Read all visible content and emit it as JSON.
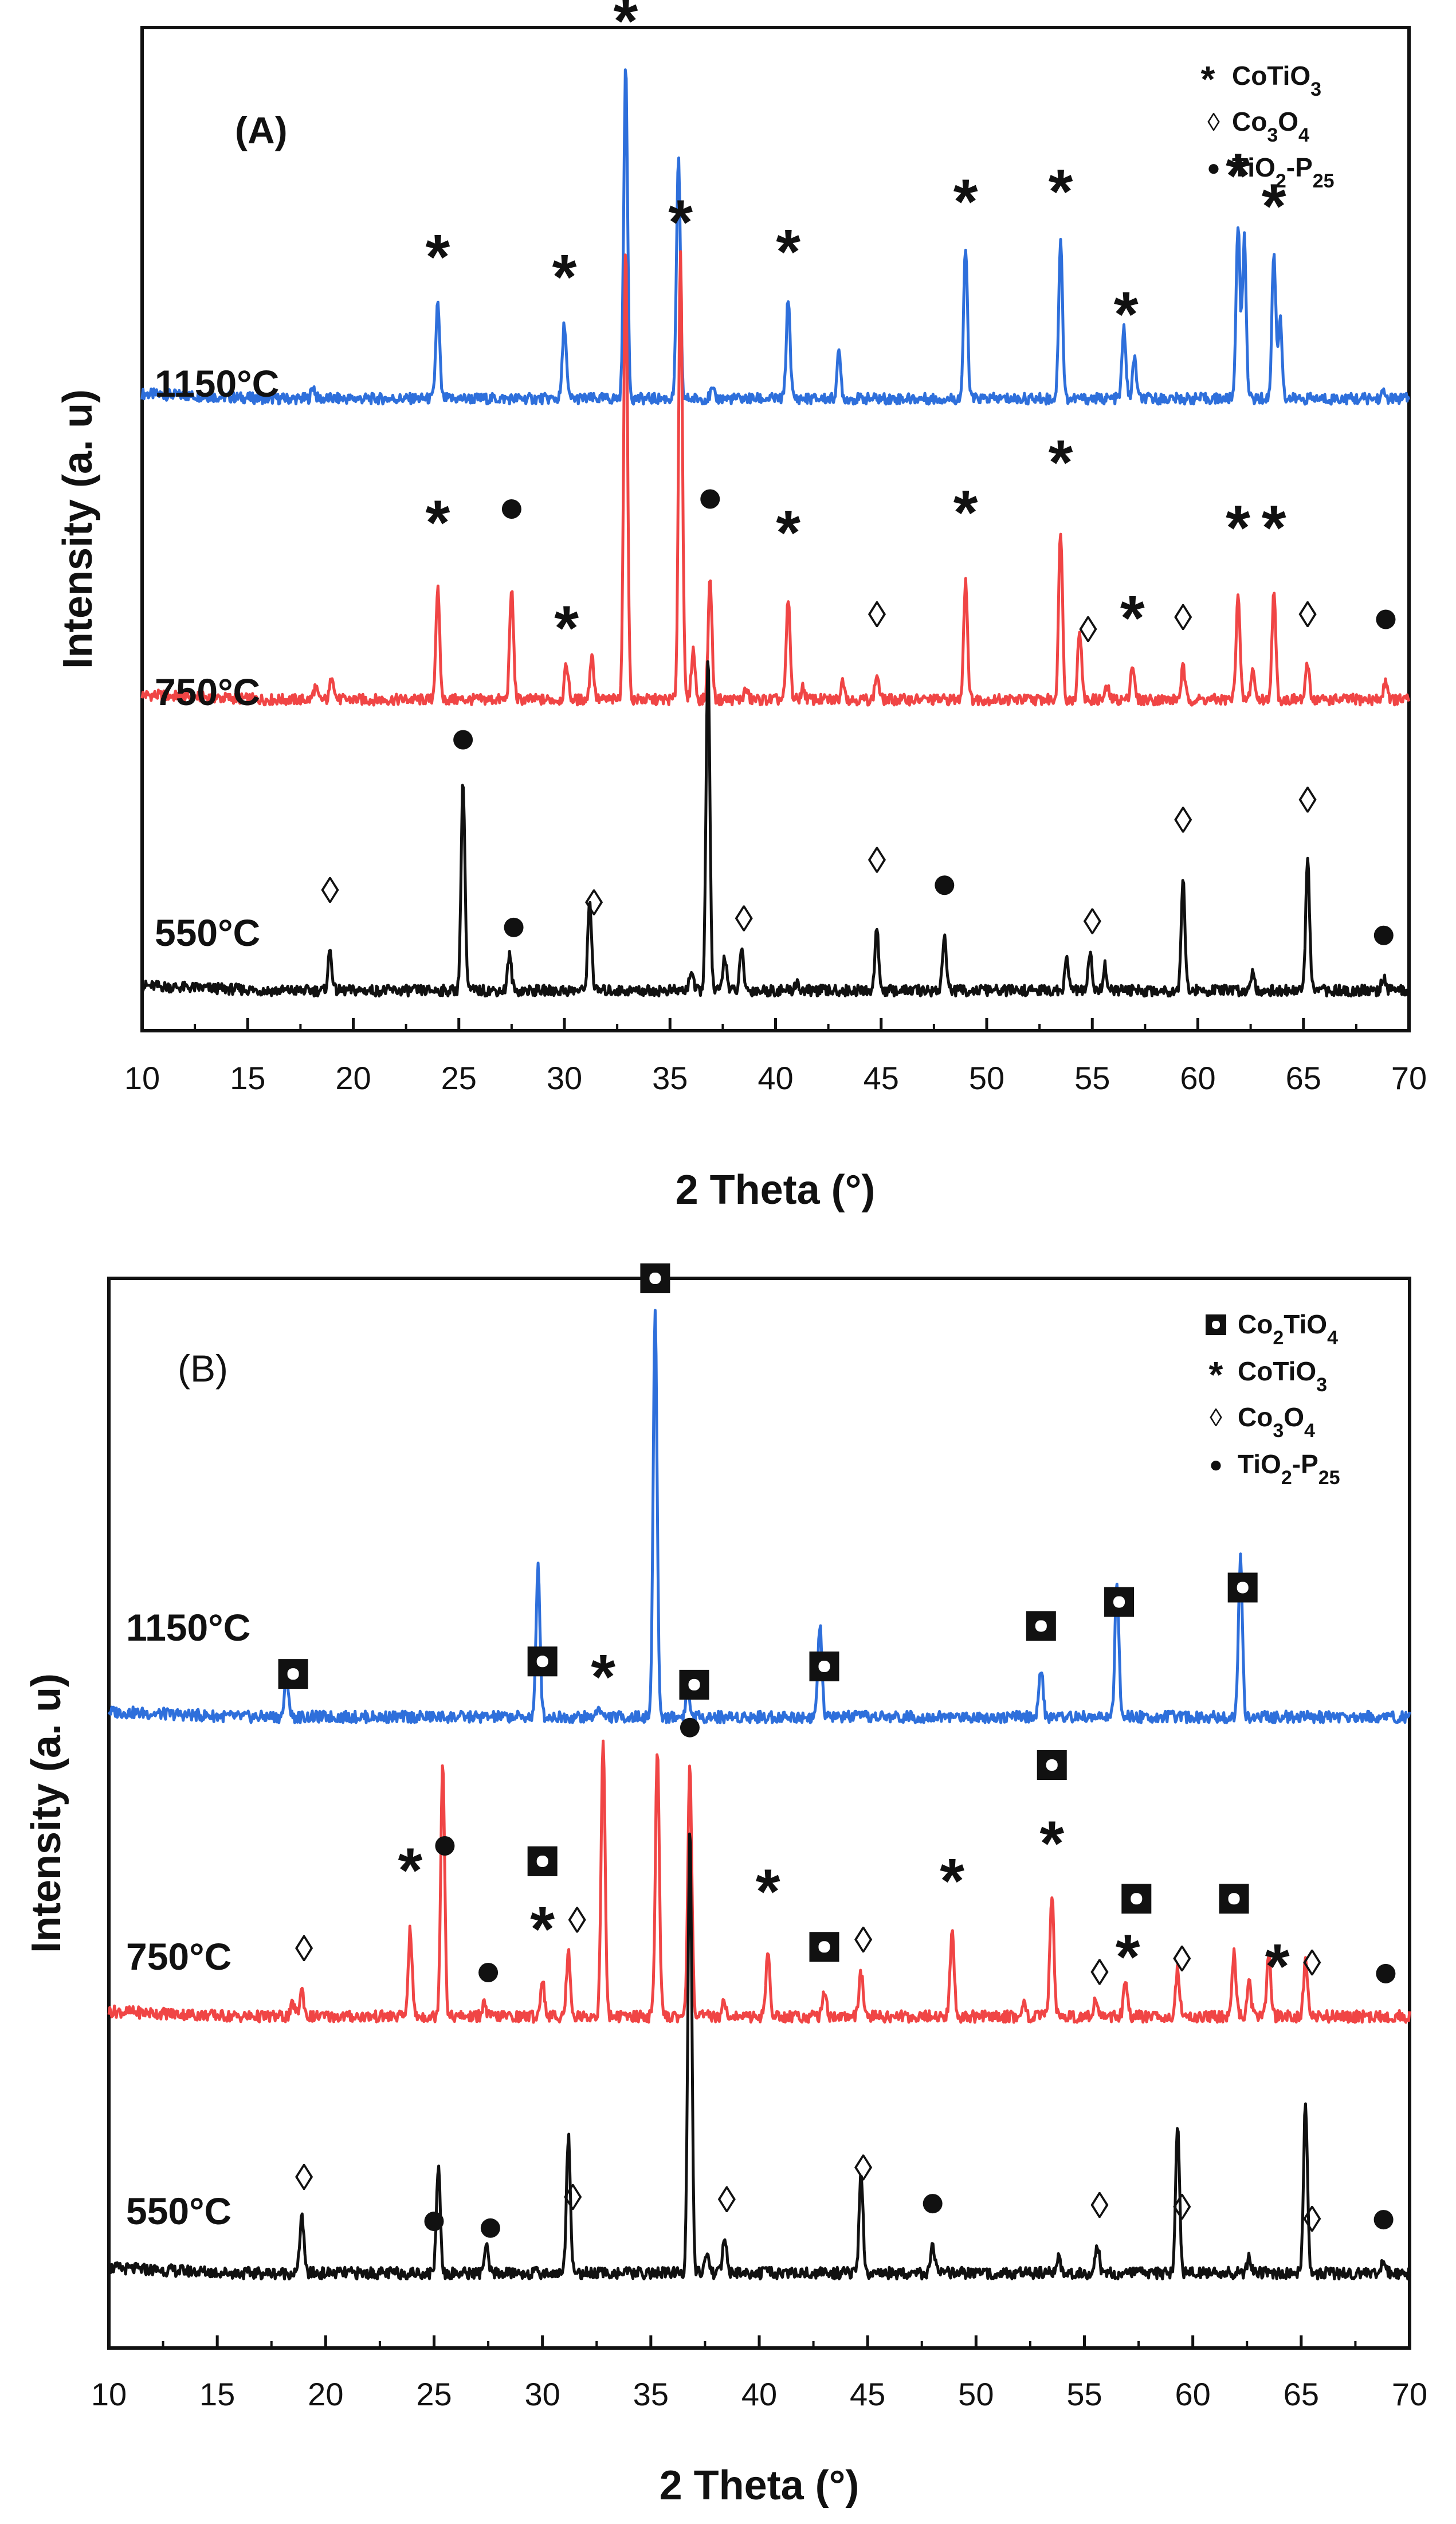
{
  "chart_data": [
    {
      "type": "line",
      "panel_label": "(A)",
      "xlabel": "2 Theta (°)",
      "ylabel": "Intensity (a. u)",
      "xlim": [
        10,
        70
      ],
      "ylim": [
        0,
        100
      ],
      "x_ticks": [
        "10",
        "15",
        "20",
        "25",
        "30",
        "35",
        "40",
        "45",
        "50",
        "55",
        "60",
        "65",
        "70"
      ],
      "legend": {
        "position": "top-right",
        "entries": [
          {
            "marker": "*",
            "text": "CoTiO3"
          },
          {
            "marker": "◊",
            "text": "Co3O4"
          },
          {
            "marker": "●",
            "text": "TiO2-P25"
          }
        ]
      },
      "series": [
        {
          "name": "1150°C",
          "color": "#2e6fdb",
          "baseline": 63,
          "peaks": [
            {
              "x": 18.1,
              "h": 1.2
            },
            {
              "x": 24.0,
              "h": 9.5
            },
            {
              "x": 30.0,
              "h": 7.5
            },
            {
              "x": 32.9,
              "h": 33
            },
            {
              "x": 35.4,
              "h": 24
            },
            {
              "x": 37.0,
              "h": 0.8
            },
            {
              "x": 40.6,
              "h": 10
            },
            {
              "x": 43.0,
              "h": 4.5
            },
            {
              "x": 49.0,
              "h": 15
            },
            {
              "x": 53.5,
              "h": 16
            },
            {
              "x": 56.5,
              "h": 7
            },
            {
              "x": 57.0,
              "h": 4
            },
            {
              "x": 61.9,
              "h": 17.5
            },
            {
              "x": 62.2,
              "h": 16
            },
            {
              "x": 63.6,
              "h": 14.5
            },
            {
              "x": 63.9,
              "h": 8
            },
            {
              "x": 68.8,
              "h": 0.6
            }
          ],
          "markers": [
            {
              "x": 24.0,
              "sym": "*"
            },
            {
              "x": 30.0,
              "sym": "*"
            },
            {
              "x": 32.9,
              "sym": "*"
            },
            {
              "x": 35.5,
              "sym": "*"
            },
            {
              "x": 40.6,
              "sym": "*"
            },
            {
              "x": 49.0,
              "sym": "*"
            },
            {
              "x": 53.5,
              "sym": "*"
            },
            {
              "x": 56.6,
              "sym": "*"
            },
            {
              "x": 61.9,
              "sym": "*"
            },
            {
              "x": 63.6,
              "sym": "*"
            }
          ]
        },
        {
          "name": "750°C",
          "color": "#f04545",
          "baseline": 33,
          "peaks": [
            {
              "x": 18.2,
              "h": 1.2
            },
            {
              "x": 19.0,
              "h": 2.5
            },
            {
              "x": 24.0,
              "h": 11
            },
            {
              "x": 27.5,
              "h": 11
            },
            {
              "x": 30.1,
              "h": 3.5
            },
            {
              "x": 31.3,
              "h": 4.5
            },
            {
              "x": 32.9,
              "h": 45
            },
            {
              "x": 35.5,
              "h": 45
            },
            {
              "x": 36.1,
              "h": 5
            },
            {
              "x": 36.9,
              "h": 12
            },
            {
              "x": 38.6,
              "h": 1
            },
            {
              "x": 40.6,
              "h": 10
            },
            {
              "x": 41.3,
              "h": 1.2
            },
            {
              "x": 43.2,
              "h": 2
            },
            {
              "x": 44.8,
              "h": 2.5
            },
            {
              "x": 49.0,
              "h": 12
            },
            {
              "x": 53.5,
              "h": 17
            },
            {
              "x": 54.4,
              "h": 7
            },
            {
              "x": 55.7,
              "h": 1.2
            },
            {
              "x": 56.9,
              "h": 3.5
            },
            {
              "x": 59.3,
              "h": 3.2
            },
            {
              "x": 61.9,
              "h": 10.5
            },
            {
              "x": 62.6,
              "h": 3
            },
            {
              "x": 63.6,
              "h": 10.5
            },
            {
              "x": 65.2,
              "h": 3.5
            },
            {
              "x": 68.9,
              "h": 2
            }
          ],
          "markers": [
            {
              "x": 24.0,
              "sym": "*",
              "dy": 7
            },
            {
              "x": 27.5,
              "sym": "●",
              "dy": 8
            },
            {
              "x": 30.1,
              "sym": "*",
              "dy": 4
            },
            {
              "x": 36.9,
              "sym": "●",
              "dy": 8
            },
            {
              "x": 40.6,
              "sym": "*",
              "dy": 7
            },
            {
              "x": 44.8,
              "sym": "◊",
              "dy": 6
            },
            {
              "x": 49.0,
              "sym": "*",
              "dy": 7
            },
            {
              "x": 53.5,
              "sym": "*",
              "dy": 7
            },
            {
              "x": 54.8,
              "sym": "◊",
              "dy": 7
            },
            {
              "x": 56.9,
              "sym": "*",
              "dy": 5
            },
            {
              "x": 59.3,
              "sym": "◊",
              "dy": 5
            },
            {
              "x": 61.9,
              "sym": "*",
              "dy": 7
            },
            {
              "x": 63.6,
              "sym": "*",
              "dy": 7
            },
            {
              "x": 65.2,
              "sym": "◊",
              "dy": 5
            },
            {
              "x": 68.9,
              "sym": "●",
              "dy": 6
            }
          ]
        },
        {
          "name": "550°C",
          "color": "#111111",
          "baseline": 4,
          "peaks": [
            {
              "x": 18.9,
              "h": 4
            },
            {
              "x": 25.2,
              "h": 21
            },
            {
              "x": 27.4,
              "h": 3.5
            },
            {
              "x": 31.2,
              "h": 9
            },
            {
              "x": 36.0,
              "h": 2
            },
            {
              "x": 36.8,
              "h": 33
            },
            {
              "x": 37.6,
              "h": 3.5
            },
            {
              "x": 38.4,
              "h": 4
            },
            {
              "x": 41.0,
              "h": 0.8
            },
            {
              "x": 44.8,
              "h": 6
            },
            {
              "x": 48.0,
              "h": 5.5
            },
            {
              "x": 53.8,
              "h": 3
            },
            {
              "x": 54.9,
              "h": 3.5
            },
            {
              "x": 55.6,
              "h": 2.5
            },
            {
              "x": 59.3,
              "h": 11
            },
            {
              "x": 62.6,
              "h": 2
            },
            {
              "x": 65.2,
              "h": 13
            },
            {
              "x": 68.8,
              "h": 1.5
            }
          ],
          "markers": [
            {
              "x": 18.9,
              "sym": "◊",
              "dy": 6
            },
            {
              "x": 25.2,
              "sym": "●",
              "dy": 4
            },
            {
              "x": 27.6,
              "sym": "●",
              "dy": 6
            },
            {
              "x": 31.4,
              "sym": "◊",
              "dy": 8
            },
            {
              "x": 38.5,
              "sym": "◊",
              "dy": 5
            },
            {
              "x": 44.8,
              "sym": "◊",
              "dy": 7
            },
            {
              "x": 48.0,
              "sym": "●",
              "dy": 5
            },
            {
              "x": 55.0,
              "sym": "◊",
              "dy": 5
            },
            {
              "x": 59.3,
              "sym": "◊",
              "dy": 6
            },
            {
              "x": 65.2,
              "sym": "◊",
              "dy": 6
            },
            {
              "x": 68.8,
              "sym": "●",
              "dy": 4
            }
          ]
        }
      ]
    },
    {
      "type": "line",
      "panel_label": "(B)",
      "xlabel": "2 Theta (°)",
      "ylabel": "Intensity (a. u)",
      "xlim": [
        10,
        70
      ],
      "ylim": [
        0,
        100
      ],
      "x_ticks": [
        "10",
        "15",
        "20",
        "25",
        "30",
        "35",
        "40",
        "45",
        "50",
        "55",
        "60",
        "65",
        "70"
      ],
      "legend": {
        "position": "top-right",
        "entries": [
          {
            "marker": "◘",
            "text": "Co2TiO4"
          },
          {
            "marker": "*",
            "text": "CoTiO3"
          },
          {
            "marker": "◊",
            "text": "Co3O4"
          },
          {
            "marker": "●",
            "text": "TiO2-P25"
          }
        ]
      },
      "series": [
        {
          "name": "1150°C",
          "color": "#2e6fdb",
          "baseline": 59,
          "peaks": [
            {
              "x": 18.2,
              "h": 4
            },
            {
              "x": 29.8,
              "h": 14
            },
            {
              "x": 32.6,
              "h": 1
            },
            {
              "x": 35.2,
              "h": 38
            },
            {
              "x": 36.7,
              "h": 2.5
            },
            {
              "x": 42.8,
              "h": 8.5
            },
            {
              "x": 53.0,
              "h": 4.5
            },
            {
              "x": 56.5,
              "h": 12.5
            },
            {
              "x": 62.2,
              "h": 15
            }
          ],
          "markers": [
            {
              "x": 18.5,
              "sym": "◘",
              "dy": 4
            },
            {
              "x": 30.0,
              "sym": "◘",
              "dy": 4
            },
            {
              "x": 32.8,
              "sym": "*",
              "dy": 4
            },
            {
              "x": 35.2,
              "sym": "◘",
              "dy": 3
            },
            {
              "x": 37.0,
              "sym": "◘",
              "dy": 3
            },
            {
              "x": 43.0,
              "sym": "◘",
              "dy": 4
            },
            {
              "x": 53.0,
              "sym": "◘",
              "dy": 4
            },
            {
              "x": 56.6,
              "sym": "◘",
              "dy": 4
            },
            {
              "x": 62.3,
              "sym": "◘",
              "dy": 4
            }
          ]
        },
        {
          "name": "750°C",
          "color": "#f04545",
          "baseline": 31,
          "peaks": [
            {
              "x": 18.5,
              "h": 1.2
            },
            {
              "x": 18.9,
              "h": 2.5
            },
            {
              "x": 23.9,
              "h": 8
            },
            {
              "x": 25.4,
              "h": 24
            },
            {
              "x": 27.3,
              "h": 1.2
            },
            {
              "x": 30.0,
              "h": 3.5
            },
            {
              "x": 31.2,
              "h": 6
            },
            {
              "x": 32.8,
              "h": 26
            },
            {
              "x": 35.3,
              "h": 25
            },
            {
              "x": 36.8,
              "h": 24
            },
            {
              "x": 38.4,
              "h": 1.5
            },
            {
              "x": 40.4,
              "h": 6
            },
            {
              "x": 43.0,
              "h": 2.5
            },
            {
              "x": 44.7,
              "h": 4
            },
            {
              "x": 48.9,
              "h": 8
            },
            {
              "x": 52.2,
              "h": 1.2
            },
            {
              "x": 53.5,
              "h": 11.5
            },
            {
              "x": 55.5,
              "h": 1.5
            },
            {
              "x": 56.9,
              "h": 3.5
            },
            {
              "x": 59.3,
              "h": 4.5
            },
            {
              "x": 61.9,
              "h": 6
            },
            {
              "x": 62.6,
              "h": 3
            },
            {
              "x": 63.5,
              "h": 6
            },
            {
              "x": 65.2,
              "h": 5
            }
          ],
          "markers": [
            {
              "x": 19.0,
              "sym": "◊",
              "dy": 5
            },
            {
              "x": 23.9,
              "sym": "*",
              "dy": 6
            },
            {
              "x": 25.5,
              "sym": "●",
              "dy": 3
            },
            {
              "x": 27.5,
              "sym": "●",
              "dy": 4
            },
            {
              "x": 30.0,
              "sym": "◘",
              "dy": 11
            },
            {
              "x": 30.0,
              "sym": "*",
              "dy": 5
            },
            {
              "x": 31.6,
              "sym": "◊",
              "dy": 9
            },
            {
              "x": 36.8,
              "sym": "●",
              "dy": 3
            },
            {
              "x": 40.4,
              "sym": "*",
              "dy": 6
            },
            {
              "x": 43.0,
              "sym": "◘",
              "dy": 4
            },
            {
              "x": 44.8,
              "sym": "◊",
              "dy": 5
            },
            {
              "x": 48.9,
              "sym": "*",
              "dy": 5
            },
            {
              "x": 53.5,
              "sym": "◘",
              "dy": 12
            },
            {
              "x": 53.5,
              "sym": "*",
              "dy": 5
            },
            {
              "x": 55.7,
              "sym": "◊",
              "dy": 4
            },
            {
              "x": 57.4,
              "sym": "◘",
              "dy": 11
            },
            {
              "x": 57.0,
              "sym": "*",
              "dy": 4
            },
            {
              "x": 59.5,
              "sym": "◊",
              "dy": 5
            },
            {
              "x": 61.9,
              "sym": "◘",
              "dy": 5
            },
            {
              "x": 63.9,
              "sym": "*",
              "dy": 5
            },
            {
              "x": 65.5,
              "sym": "◊",
              "dy": 5
            },
            {
              "x": 68.9,
              "sym": "●",
              "dy": 4
            }
          ]
        },
        {
          "name": "550°C",
          "color": "#111111",
          "baseline": 7,
          "peaks": [
            {
              "x": 18.9,
              "h": 5.5
            },
            {
              "x": 25.2,
              "h": 10
            },
            {
              "x": 27.4,
              "h": 2.5
            },
            {
              "x": 31.2,
              "h": 13
            },
            {
              "x": 36.8,
              "h": 42
            },
            {
              "x": 37.6,
              "h": 2
            },
            {
              "x": 38.4,
              "h": 3.5
            },
            {
              "x": 44.7,
              "h": 9
            },
            {
              "x": 48.0,
              "h": 2.5
            },
            {
              "x": 53.8,
              "h": 1.5
            },
            {
              "x": 55.6,
              "h": 2.5
            },
            {
              "x": 59.3,
              "h": 14
            },
            {
              "x": 62.6,
              "h": 1.5
            },
            {
              "x": 65.2,
              "h": 16
            },
            {
              "x": 68.8,
              "h": 1
            }
          ],
          "markers": [
            {
              "x": 19.0,
              "sym": "◊",
              "dy": 6
            },
            {
              "x": 25.0,
              "sym": "●",
              "dy": 4
            },
            {
              "x": 27.6,
              "sym": "●",
              "dy": 4
            },
            {
              "x": 31.4,
              "sym": "◊",
              "dy": 6
            },
            {
              "x": 38.5,
              "sym": "◊",
              "dy": 5
            },
            {
              "x": 44.8,
              "sym": "◊",
              "dy": 5
            },
            {
              "x": 48.0,
              "sym": "●",
              "dy": 4
            },
            {
              "x": 55.7,
              "sym": "◊",
              "dy": 5
            },
            {
              "x": 59.5,
              "sym": "◊",
              "dy": 5
            },
            {
              "x": 65.5,
              "sym": "◊",
              "dy": 5
            },
            {
              "x": 68.8,
              "sym": "●",
              "dy": 4
            }
          ]
        }
      ]
    }
  ]
}
